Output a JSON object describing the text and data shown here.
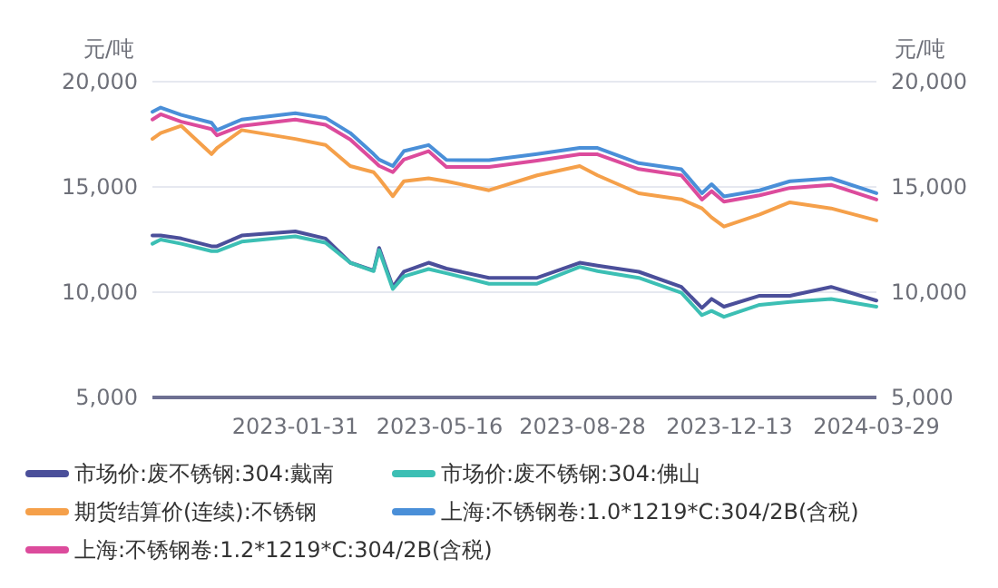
{
  "chart_data": {
    "type": "line",
    "ylabel": "元/吨",
    "y2label": "元/吨",
    "x": [
      "2022-10-19",
      "2022-10-25",
      "2022-11-09",
      "2022-12-01",
      "2022-12-05",
      "2022-12-23",
      "2023-01-31",
      "2023-02-22",
      "2023-03-12",
      "2023-03-29",
      "2023-04-02",
      "2023-04-12",
      "2023-04-20",
      "2023-05-08",
      "2023-05-21",
      "2023-06-21",
      "2023-07-26",
      "2023-08-26",
      "2023-09-08",
      "2023-10-08",
      "2023-11-08",
      "2023-11-23",
      "2023-11-30",
      "2023-12-09",
      "2024-01-04",
      "2024-01-26",
      "2024-02-25",
      "2024-03-29"
    ],
    "xlim": [
      "2022-10-19",
      "2024-03-29"
    ],
    "xticks": [
      "2023-01-31",
      "2023-05-16",
      "2023-08-28",
      "2023-12-13",
      "2024-03-29"
    ],
    "ylim": [
      5000,
      20000
    ],
    "yticks": [
      {
        "value": 5000,
        "label": "5,000"
      },
      {
        "value": 10000,
        "label": "10,000"
      },
      {
        "value": 15000,
        "label": "15,000"
      },
      {
        "value": 20000,
        "label": "20,000"
      }
    ],
    "y2lim": [
      5000,
      20000
    ],
    "y2ticks": [
      {
        "value": 5000,
        "label": "5,000"
      },
      {
        "value": 10000,
        "label": "10,000"
      },
      {
        "value": 15000,
        "label": "15,000"
      },
      {
        "value": 20000,
        "label": "20,000"
      }
    ],
    "grid": "y",
    "legend": "bottom",
    "line_style": "solid",
    "series": [
      {
        "name": "市场价:废不锈钢:304:戴南",
        "color": "#4b4f9a",
        "values": [
          12690,
          12690,
          12550,
          12180,
          12180,
          12690,
          12890,
          12550,
          11400,
          11030,
          12100,
          10250,
          10970,
          11400,
          11120,
          10680,
          10680,
          11400,
          11260,
          10970,
          10250,
          9250,
          9680,
          9310,
          9830,
          9830,
          10250,
          9600
        ]
      },
      {
        "name": "市场价:废不锈钢:304:佛山",
        "color": "#3cbfb4",
        "values": [
          12300,
          12500,
          12300,
          11950,
          11950,
          12400,
          12650,
          12350,
          11400,
          11000,
          12000,
          10150,
          10750,
          11100,
          10900,
          10400,
          10400,
          11200,
          11000,
          10680,
          9970,
          8910,
          9110,
          8830,
          9400,
          9540,
          9680,
          9310
        ]
      },
      {
        "name": "期货结算价(连续):不锈钢",
        "color": "#f5a04a",
        "values": [
          17280,
          17560,
          17900,
          16560,
          16850,
          17700,
          17280,
          16990,
          15990,
          15700,
          15400,
          14560,
          15270,
          15410,
          15270,
          14840,
          15550,
          15990,
          15550,
          14700,
          14410,
          13980,
          13550,
          13120,
          13690,
          14270,
          13980,
          13410
        ]
      },
      {
        "name": "上海:不锈钢卷:1.0*1219*C:304/2B(含税)",
        "color": "#4a8fd8",
        "values": [
          18570,
          18770,
          18420,
          18050,
          17700,
          18200,
          18500,
          18280,
          17560,
          16560,
          16300,
          15990,
          16700,
          16990,
          16280,
          16270,
          16560,
          16850,
          16850,
          16130,
          15840,
          14700,
          15130,
          14550,
          14840,
          15270,
          15410,
          14700
        ]
      },
      {
        "name": "上海:不锈钢卷:1.2*1219*C:304/2B(含税)",
        "color": "#dc4b9c",
        "values": [
          18200,
          18450,
          18100,
          17750,
          17450,
          17900,
          18200,
          17950,
          17250,
          16250,
          16000,
          15700,
          16300,
          16700,
          15950,
          15950,
          16250,
          16550,
          16550,
          15850,
          15550,
          14400,
          14800,
          14300,
          14600,
          14950,
          15100,
          14400
        ]
      }
    ]
  }
}
